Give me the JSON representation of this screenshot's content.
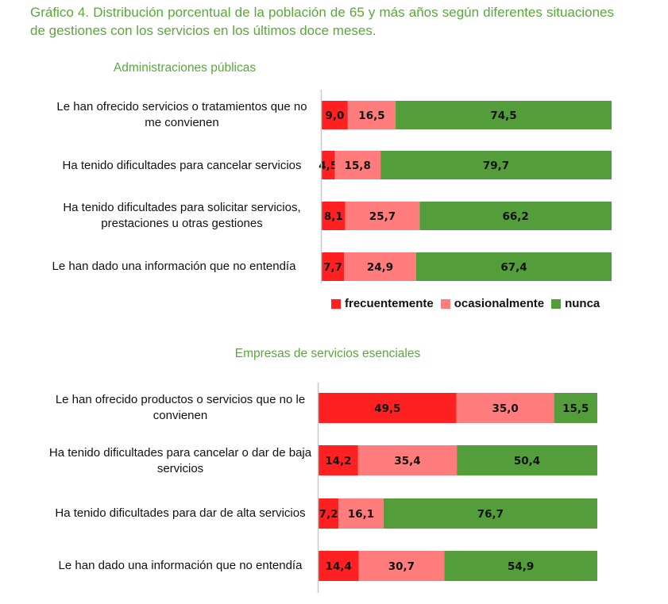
{
  "title": "Gráfico 4. Distribución porcentual de la población de 65 y más años según diferentes situaciones de gestiones con los servicios en los últimos doce meses.",
  "colors": {
    "frecuentemente": "#ff2121",
    "ocasionalmente": "#ff7c7c",
    "nunca": "#539e3a",
    "title": "#5aa83a"
  },
  "legend": [
    {
      "key": "frecuentemente",
      "label": "frecuentemente"
    },
    {
      "key": "ocasionalmente",
      "label": "ocasionalmente"
    },
    {
      "key": "nunca",
      "label": "nunca"
    }
  ],
  "chart_data": [
    {
      "type": "bar",
      "orientation": "horizontal",
      "stacked": true,
      "title": "Administraciones públicas",
      "categories": [
        "Le han ofrecido servicios o tratamientos que no me convienen",
        "Ha tenido dificultades para cancelar servicios",
        "Ha tenido dificultades para solicitar servicios, prestaciones u otras gestiones",
        "Le han dado una información que no entendía"
      ],
      "series": [
        {
          "name": "frecuentemente",
          "values": [
            9.0,
            4.5,
            8.1,
            7.7
          ],
          "labels": [
            "9,0",
            "4,5",
            "8,1",
            "7,7"
          ]
        },
        {
          "name": "ocasionalmente",
          "values": [
            16.5,
            15.8,
            25.7,
            24.9
          ],
          "labels": [
            "16,5",
            "15,8",
            "25,7",
            "24,9"
          ]
        },
        {
          "name": "nunca",
          "values": [
            74.5,
            79.7,
            66.2,
            67.4
          ],
          "labels": [
            "74,5",
            "79,7",
            "66,2",
            "67,4"
          ]
        }
      ],
      "xlim": [
        0,
        100
      ],
      "xlabel": "",
      "ylabel": "",
      "grid": false,
      "legend": "bottom"
    },
    {
      "type": "bar",
      "orientation": "horizontal",
      "stacked": true,
      "title": "Empresas de servicios esenciales",
      "categories": [
        "Le han ofrecido productos o servicios que no le convienen",
        "Ha tenido dificultades para cancelar o dar de baja servicios",
        "Ha tenido dificultades para dar de alta servicios",
        "Le han dado una información que no entendía"
      ],
      "series": [
        {
          "name": "frecuentemente",
          "values": [
            49.5,
            14.2,
            7.2,
            14.4
          ],
          "labels": [
            "49,5",
            "14,2",
            "7,2",
            "14,4"
          ]
        },
        {
          "name": "ocasionalmente",
          "values": [
            35.0,
            35.4,
            16.1,
            30.7
          ],
          "labels": [
            "35,0",
            "35,4",
            "16,1",
            "30,7"
          ]
        },
        {
          "name": "nunca",
          "values": [
            15.5,
            50.4,
            76.7,
            54.9
          ],
          "labels": [
            "15,5",
            "50,4",
            "76,7",
            "54,9"
          ]
        }
      ],
      "xlim": [
        0,
        100
      ],
      "xlabel": "",
      "ylabel": "",
      "grid": false,
      "legend": "none"
    }
  ]
}
